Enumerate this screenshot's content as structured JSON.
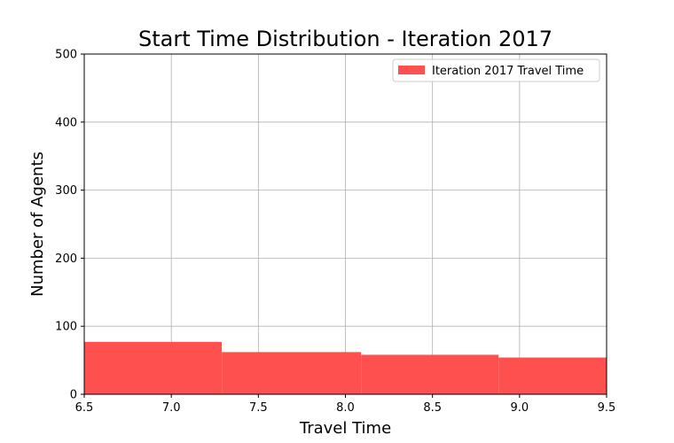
{
  "chart_data": {
    "type": "bar",
    "title": "Start Time Distribution - Iteration 2017",
    "xlabel": "Travel Time",
    "ylabel": "Number of Agents",
    "xlim": [
      6.5,
      9.5
    ],
    "ylim": [
      0,
      500
    ],
    "xticks": [
      "6.5",
      "7.0",
      "7.5",
      "8.0",
      "8.5",
      "9.0",
      "9.5"
    ],
    "yticks": [
      "0",
      "100",
      "200",
      "300",
      "400",
      "500"
    ],
    "grid": true,
    "legend_position": "top-right",
    "series": [
      {
        "name": "Iteration 2017 Travel Time",
        "color": "#ff5050",
        "bins": [
          {
            "x0": 6.5,
            "x1": 7.29,
            "value": 77
          },
          {
            "x0": 7.29,
            "x1": 8.09,
            "value": 62
          },
          {
            "x0": 8.09,
            "x1": 8.88,
            "value": 58
          },
          {
            "x0": 8.88,
            "x1": 9.5,
            "value": 54
          }
        ]
      }
    ]
  }
}
